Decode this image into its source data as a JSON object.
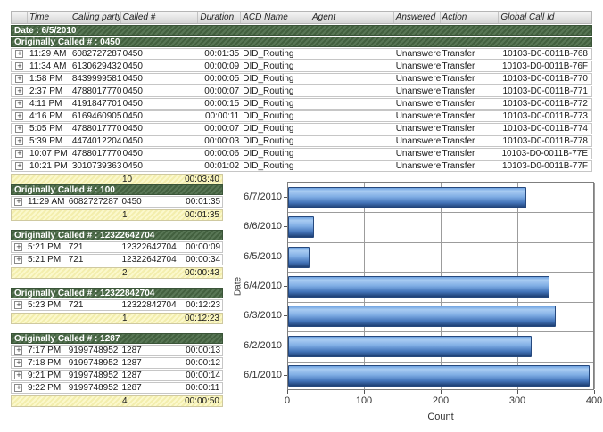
{
  "icons": {
    "expand": "+"
  },
  "colors": {
    "group_band_green": "#4d6b47",
    "summary_yellow": "#f8f4bc",
    "bar_blue": "#5b8fd4",
    "grid_gray": "#9c9c9c"
  },
  "table": {
    "columns": {
      "time": "Time",
      "calling": "Calling party #",
      "called": "Called #",
      "duration": "Duration",
      "acd": "ACD Name",
      "agent": "Agent",
      "answered": "Answered",
      "action": "Action",
      "global_id": "Global Call Id"
    },
    "date_band": "Date : 6/5/2010",
    "group_band": "Originally Called # : 0450",
    "rows": [
      {
        "time": "11:29 AM",
        "calling": "6082727287",
        "called": "0450",
        "duration": "00:01:35",
        "acd": "DID_Routing",
        "agent": "",
        "answered": "Unanswered",
        "action": "Transfer",
        "id": "10103-D0-0011B-768"
      },
      {
        "time": "11:34 AM",
        "calling": "6130629432",
        "called": "0450",
        "duration": "00:00:09",
        "acd": "DID_Routing",
        "agent": "",
        "answered": "Unanswered",
        "action": "Transfer",
        "id": "10103-D0-0011B-76F"
      },
      {
        "time": "1:58 PM",
        "calling": "8439999581",
        "called": "0450",
        "duration": "00:00:05",
        "acd": "DID_Routing",
        "agent": "",
        "answered": "Unanswered",
        "action": "Transfer",
        "id": "10103-D0-0011B-770"
      },
      {
        "time": "2:37 PM",
        "calling": "4788017770",
        "called": "0450",
        "duration": "00:00:07",
        "acd": "DID_Routing",
        "agent": "",
        "answered": "Unanswered",
        "action": "Transfer",
        "id": "10103-D0-0011B-771"
      },
      {
        "time": "4:11 PM",
        "calling": "4191847701",
        "called": "0450",
        "duration": "00:00:15",
        "acd": "DID_Routing",
        "agent": "",
        "answered": "Unanswered",
        "action": "Transfer",
        "id": "10103-D0-0011B-772"
      },
      {
        "time": "4:16 PM",
        "calling": "6169460905",
        "called": "0450",
        "duration": "00:00:11",
        "acd": "DID_Routing",
        "agent": "",
        "answered": "Unanswered",
        "action": "Transfer",
        "id": "10103-D0-0011B-773"
      },
      {
        "time": "5:05 PM",
        "calling": "4788017770",
        "called": "0450",
        "duration": "00:00:07",
        "acd": "DID_Routing",
        "agent": "",
        "answered": "Unanswered",
        "action": "Transfer",
        "id": "10103-D0-0011B-774"
      },
      {
        "time": "5:39 PM",
        "calling": "4474012204",
        "called": "0450",
        "duration": "00:00:03",
        "acd": "DID_Routing",
        "agent": "",
        "answered": "Unanswered",
        "action": "Transfer",
        "id": "10103-D0-0011B-778"
      },
      {
        "time": "10:07 PM",
        "calling": "4788017770",
        "called": "0450",
        "duration": "00:00:06",
        "acd": "DID_Routing",
        "agent": "",
        "answered": "Unanswered",
        "action": "Transfer",
        "id": "10103-D0-0011B-77E"
      },
      {
        "time": "10:21 PM",
        "calling": "3010739363",
        "called": "0450",
        "duration": "00:01:02",
        "acd": "DID_Routing",
        "agent": "",
        "answered": "Unanswered",
        "action": "Transfer",
        "id": "10103-D0-0011B-77F"
      }
    ],
    "summary": {
      "count": "10",
      "duration": "00:03:40"
    }
  },
  "sections": [
    {
      "header": "Originally Called # : 100",
      "rows": [
        {
          "time": "11:29 AM",
          "calling": "6082727287",
          "called": "0450",
          "duration": "00:01:35"
        }
      ],
      "summary": {
        "count": "1",
        "duration": "00:01:35"
      }
    },
    {
      "header": "Originally Called # : 12322642704",
      "rows": [
        {
          "time": "5:21 PM",
          "calling": "721",
          "called": "12322642704",
          "duration": "00:00:09"
        },
        {
          "time": "5:21 PM",
          "calling": "721",
          "called": "12322642704",
          "duration": "00:00:34"
        }
      ],
      "summary": {
        "count": "2",
        "duration": "00:00:43"
      }
    },
    {
      "header": "Originally Called # : 12322842704",
      "rows": [
        {
          "time": "5:23 PM",
          "calling": "721",
          "called": "12322842704",
          "duration": "00:12:23"
        }
      ],
      "summary": {
        "count": "1",
        "duration": "00:12:23"
      }
    },
    {
      "header": "Originally Called # : 1287",
      "rows": [
        {
          "time": "7:17 PM",
          "calling": "9199748952",
          "called": "1287",
          "duration": "00:00:13"
        },
        {
          "time": "7:18 PM",
          "calling": "9199748952",
          "called": "1287",
          "duration": "00:00:12"
        },
        {
          "time": "9:21 PM",
          "calling": "9199748952",
          "called": "1287",
          "duration": "00:00:14"
        },
        {
          "time": "9:22 PM",
          "calling": "9199748952",
          "called": "1287",
          "duration": "00:00:11"
        }
      ],
      "summary": {
        "count": "4",
        "duration": "00:00:50"
      }
    }
  ],
  "chart_data": {
    "type": "bar",
    "orientation": "horizontal",
    "title": "",
    "categories": [
      "6/7/2010",
      "6/6/2010",
      "6/5/2010",
      "6/4/2010",
      "6/3/2010",
      "6/2/2010",
      "6/1/2010"
    ],
    "values": [
      310,
      34,
      28,
      341,
      349,
      318,
      393
    ],
    "xlabel": "Count",
    "ylabel": "Date",
    "xlim": [
      0,
      400
    ],
    "xticks": [
      0,
      100,
      200,
      300,
      400
    ],
    "grid": true,
    "legend": false
  }
}
